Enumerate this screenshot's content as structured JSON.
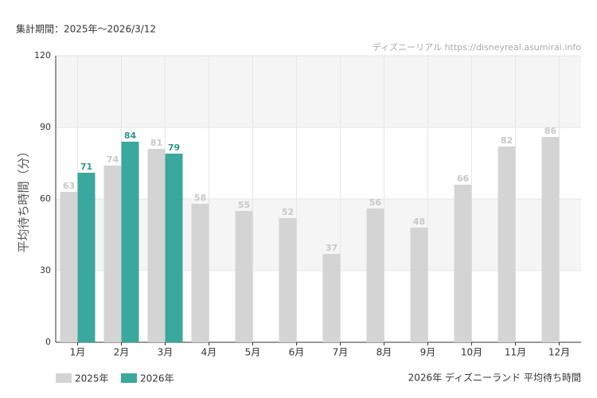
{
  "chart_data": {
    "type": "bar",
    "period": "集計期間：2025年～2026/3/12",
    "watermark": "ディズニーリアル https://disneyreal.asumirai.info",
    "y_label": "平均待ち時間（分）",
    "caption": "2026年 ディズニーランド 平均待ち時間",
    "categories": [
      "1月",
      "2月",
      "3月",
      "4月",
      "5月",
      "6月",
      "7月",
      "8月",
      "9月",
      "10月",
      "11月",
      "12月"
    ],
    "series": [
      {
        "name": "2025年",
        "color": "#d4d4d4",
        "label_color": "#c8c8c8",
        "values": [
          63,
          74,
          81,
          58,
          55,
          52,
          37,
          56,
          48,
          66,
          82,
          86
        ]
      },
      {
        "name": "2026年",
        "color": "#3aa89c",
        "label_color": "#2e978b",
        "values": [
          71,
          84,
          79,
          null,
          null,
          null,
          null,
          null,
          null,
          null,
          null,
          null
        ]
      }
    ],
    "ylim": [
      0,
      120
    ],
    "yticks": [
      0,
      30,
      60,
      90,
      120
    ],
    "grid": true
  }
}
